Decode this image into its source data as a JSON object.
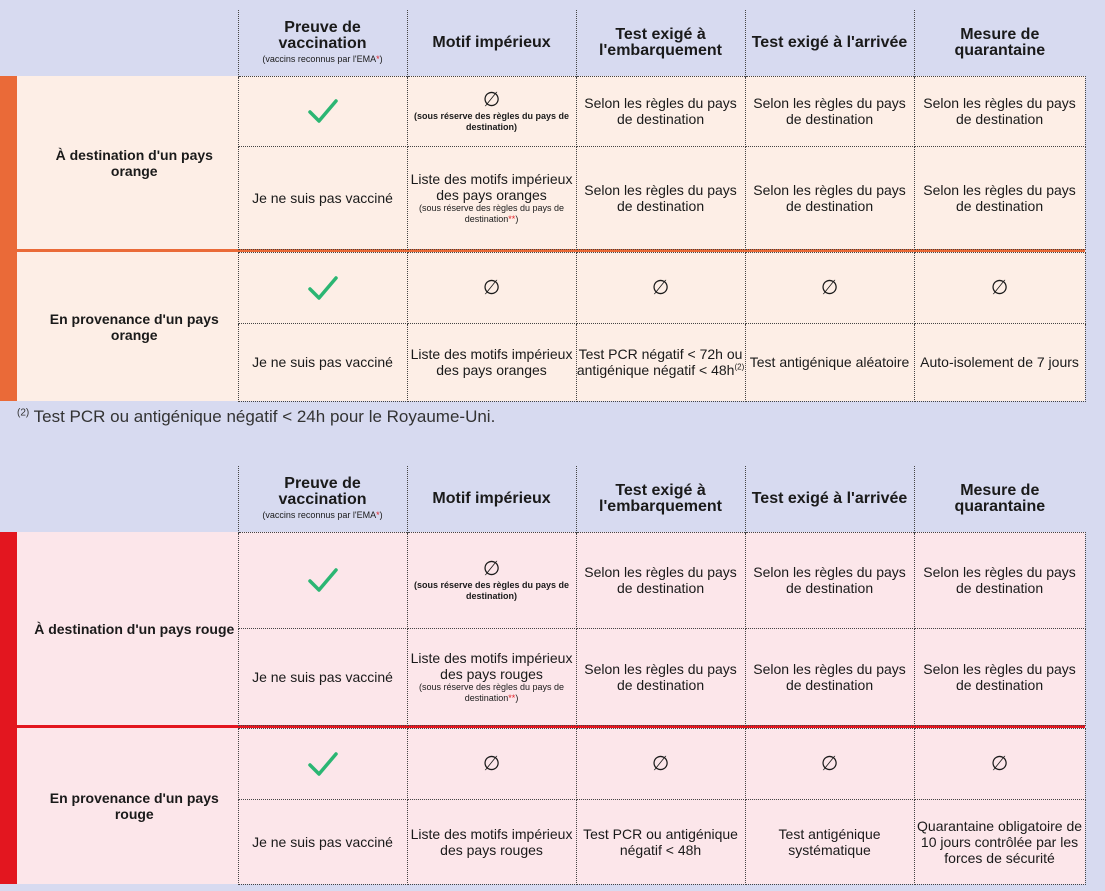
{
  "headers": {
    "proof": "Preuve de vaccination",
    "proof_note": "(vaccins reconnus par l'EMA",
    "proof_star": "*",
    "proof_close": ")",
    "motive": "Motif impérieux",
    "boarding": "Test exigé à l'embarquement",
    "arrival": "Test exigé à l'arrivée",
    "quarantine": "Mesure de quarantaine"
  },
  "symbols": {
    "check": "check-icon",
    "empty_set": "∅"
  },
  "colors": {
    "orange": "#ea6a38",
    "red": "#e3161f",
    "check": "#2bb673",
    "asterisk": "#e0242a"
  },
  "orange": {
    "dest_label": "À destination d'un pays orange",
    "dest_vacc_motive_note": "(sous réserve des règles du pays de destination)",
    "dest_rule": "Selon les règles du pays de destination",
    "dest_unvacc": "Je ne suis pas vacciné",
    "dest_unvacc_motive": "Liste des motifs impérieux des pays oranges",
    "dest_unvacc_motive_note": "(sous réserve des règles du pays de destination",
    "dest_unvacc_motive_star": "**",
    "dest_unvacc_motive_close": ")",
    "prov_label": "En provenance d'un pays orange",
    "prov_unvacc": "Je ne suis pas vacciné",
    "prov_unvacc_motive": "Liste des motifs impérieux des pays oranges",
    "prov_unvacc_boarding": "Test PCR négatif < 72h ou antigénique négatif < 48h",
    "prov_unvacc_boarding_sup": "(2)",
    "prov_unvacc_arrival": "Test antigénique aléatoire",
    "prov_unvacc_quarantine": "Auto-isolement de 7 jours"
  },
  "footnote": {
    "sup": "(2)",
    "text": "Test PCR ou antigénique négatif < 24h pour le Royaume-Uni."
  },
  "red": {
    "dest_label": "À destination d'un pays rouge",
    "dest_vacc_motive_note": "(sous réserve des règles du pays de destination)",
    "dest_rule": "Selon les règles du pays de destination",
    "dest_unvacc": "Je ne suis pas vacciné",
    "dest_unvacc_motive": "Liste des motifs impérieux des pays rouges",
    "dest_unvacc_motive_note": "(sous réserve des règles du pays de destination",
    "dest_unvacc_motive_star": "**",
    "dest_unvacc_motive_close": ")",
    "prov_label": "En provenance d'un pays rouge",
    "prov_unvacc": "Je ne suis pas vacciné",
    "prov_unvacc_motive": "Liste des motifs impérieux des pays rouges",
    "prov_unvacc_boarding": "Test PCR ou antigénique négatif < 48h",
    "prov_unvacc_arrival": "Test antigénique systématique",
    "prov_unvacc_quarantine": "Quarantaine obligatoire de 10 jours contrôlée par les forces de sécurité"
  }
}
